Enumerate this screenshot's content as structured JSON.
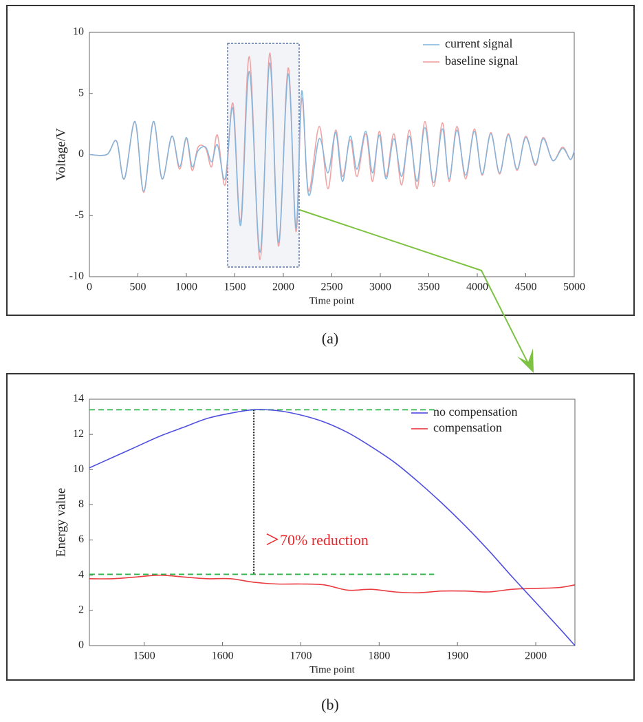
{
  "captions": [
    "(a)",
    "(b)"
  ],
  "chart_data": [
    {
      "type": "line",
      "xlabel": "Time point",
      "ylabel": "Voltage/V",
      "xlim": [
        0,
        5000
      ],
      "xticks": [
        0,
        500,
        1000,
        1500,
        2000,
        2500,
        3000,
        3500,
        4000,
        4500,
        5000
      ],
      "ylim": [
        -10,
        10
      ],
      "yticks": [
        -10,
        -5,
        0,
        5,
        10
      ],
      "legend": "upper right",
      "x": [
        0,
        180,
        280,
        360,
        470,
        560,
        660,
        750,
        850,
        930,
        1000,
        1060,
        1120,
        1200,
        1260,
        1320,
        1400,
        1480,
        1560,
        1650,
        1760,
        1860,
        1950,
        2050,
        2130,
        2190,
        2260,
        2370,
        2460,
        2540,
        2610,
        2690,
        2760,
        2850,
        2920,
        2990,
        3060,
        3140,
        3220,
        3300,
        3380,
        3460,
        3550,
        3640,
        3710,
        3790,
        3880,
        3970,
        4050,
        4140,
        4230,
        4320,
        4410,
        4500,
        4600,
        4680,
        4780,
        4880,
        4960,
        5000
      ],
      "series": [
        {
          "name": "current signal",
          "color": "#7db4dc",
          "values": [
            0,
            0,
            1.1,
            -2.0,
            2.7,
            -3.0,
            2.7,
            -2.0,
            1.5,
            -1.0,
            1.4,
            -1.0,
            0.3,
            0.6,
            -0.6,
            0.8,
            -2.0,
            3.8,
            -5.8,
            6.8,
            -8.0,
            7.5,
            -7.2,
            6.6,
            -6.0,
            5.2,
            -3.3,
            1.3,
            -1.5,
            1.8,
            -2.2,
            1.5,
            -1.2,
            1.9,
            -1.5,
            1.6,
            -2.0,
            1.3,
            -1.8,
            1.5,
            -2.2,
            2.2,
            -2.3,
            2.1,
            -2.0,
            2.0,
            -1.7,
            1.9,
            -1.6,
            1.7,
            -1.5,
            1.6,
            -1.2,
            1.4,
            -0.8,
            1.3,
            -0.5,
            0.5,
            -0.4,
            0.3
          ]
        },
        {
          "name": "baseline signal",
          "color": "#ef9a9a",
          "values": [
            0,
            0,
            1.1,
            -2.0,
            2.7,
            -3.1,
            2.7,
            -2.0,
            1.5,
            -1.2,
            1.3,
            -1.3,
            0.6,
            0.5,
            -1.0,
            1.6,
            -2.5,
            4.2,
            -5.5,
            8.0,
            -8.6,
            8.3,
            -7.5,
            7.1,
            -6.3,
            4.6,
            -3.0,
            2.3,
            -2.8,
            2.0,
            -1.8,
            1.2,
            -1.8,
            1.7,
            -2.2,
            1.9,
            -1.8,
            1.7,
            -2.5,
            2.0,
            -2.8,
            2.7,
            -2.6,
            2.6,
            -2.2,
            2.3,
            -2.0,
            2.1,
            -1.7,
            1.8,
            -1.6,
            1.7,
            -1.3,
            1.5,
            -0.9,
            1.4,
            -0.5,
            0.6,
            -0.4,
            0.3
          ]
        }
      ]
    },
    {
      "type": "line",
      "xlabel": "Time point",
      "ylabel": "Energy value",
      "xlim": [
        1430,
        2050
      ],
      "xticks": [
        1500,
        1600,
        1700,
        1800,
        1900,
        2000
      ],
      "ylim": [
        0,
        14
      ],
      "yticks": [
        0,
        2,
        4,
        6,
        8,
        10,
        12,
        14
      ],
      "legend": "upper right",
      "x": [
        1430,
        1460,
        1490,
        1520,
        1550,
        1580,
        1610,
        1640,
        1670,
        1700,
        1730,
        1760,
        1790,
        1820,
        1850,
        1880,
        1910,
        1940,
        1970,
        2000,
        2030,
        2050
      ],
      "series": [
        {
          "name": "no compensation",
          "color": "#3b3bdc",
          "values": [
            10.1,
            10.7,
            11.3,
            11.9,
            12.4,
            12.9,
            13.2,
            13.4,
            13.35,
            13.1,
            12.7,
            12.1,
            11.3,
            10.4,
            9.3,
            8.1,
            6.8,
            5.4,
            3.9,
            2.45,
            1.0,
            0
          ]
        },
        {
          "name": "compensation",
          "color": "#e8262b",
          "values": [
            3.8,
            3.8,
            3.9,
            4.0,
            3.9,
            3.8,
            3.8,
            3.6,
            3.5,
            3.5,
            3.45,
            3.15,
            3.2,
            3.05,
            3.0,
            3.1,
            3.1,
            3.05,
            3.2,
            3.25,
            3.3,
            3.45
          ]
        }
      ],
      "hlines": [
        13.4,
        4.05
      ],
      "hline_color": "#2db34a",
      "vline": 1640,
      "annotation": {
        "text": "＞70% reduction",
        "color": "#e8262b"
      }
    }
  ]
}
